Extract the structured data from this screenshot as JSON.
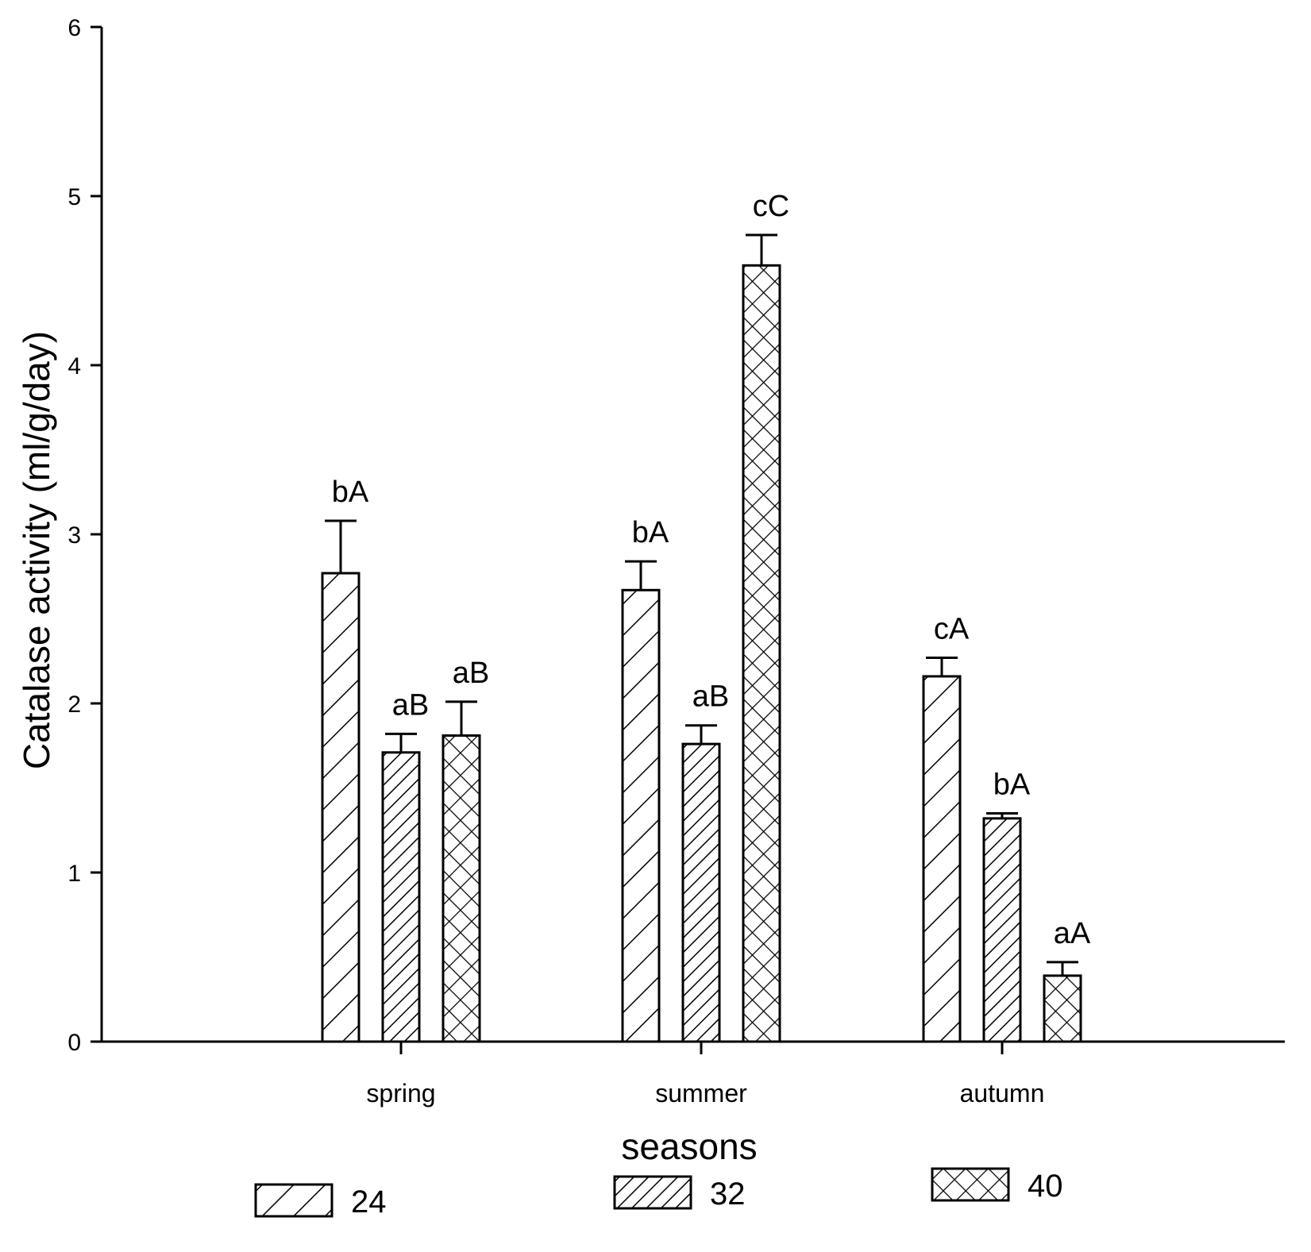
{
  "chart_data": {
    "type": "bar",
    "categories": [
      "spring",
      "summer",
      "autumn"
    ],
    "series": [
      {
        "name": "24",
        "pattern": "diag-wide",
        "values": [
          2.77,
          2.67,
          2.16
        ],
        "errors": [
          0.31,
          0.17,
          0.11
        ],
        "labels": [
          "bA",
          "bA",
          "cA"
        ]
      },
      {
        "name": "32",
        "pattern": "diag-dense",
        "values": [
          1.71,
          1.76,
          1.32
        ],
        "errors": [
          0.11,
          0.11,
          0.03
        ],
        "labels": [
          "aB",
          "aB",
          "bA"
        ]
      },
      {
        "name": "40",
        "pattern": "crosshatch",
        "values": [
          1.81,
          4.59,
          0.39
        ],
        "errors": [
          0.2,
          0.18,
          0.08
        ],
        "labels": [
          "aB",
          "cC",
          "aA"
        ]
      }
    ],
    "xlabel": "seasons",
    "ylabel": "Catalase activity (ml/g/day)",
    "ylim": [
      0,
      6
    ],
    "yticks": [
      "0",
      "1",
      "2",
      "3",
      "4",
      "5",
      "6"
    ],
    "grid": false,
    "legend_position": "bottom",
    "colors": {
      "ink": "#000000",
      "fill": "#ffffff"
    }
  }
}
